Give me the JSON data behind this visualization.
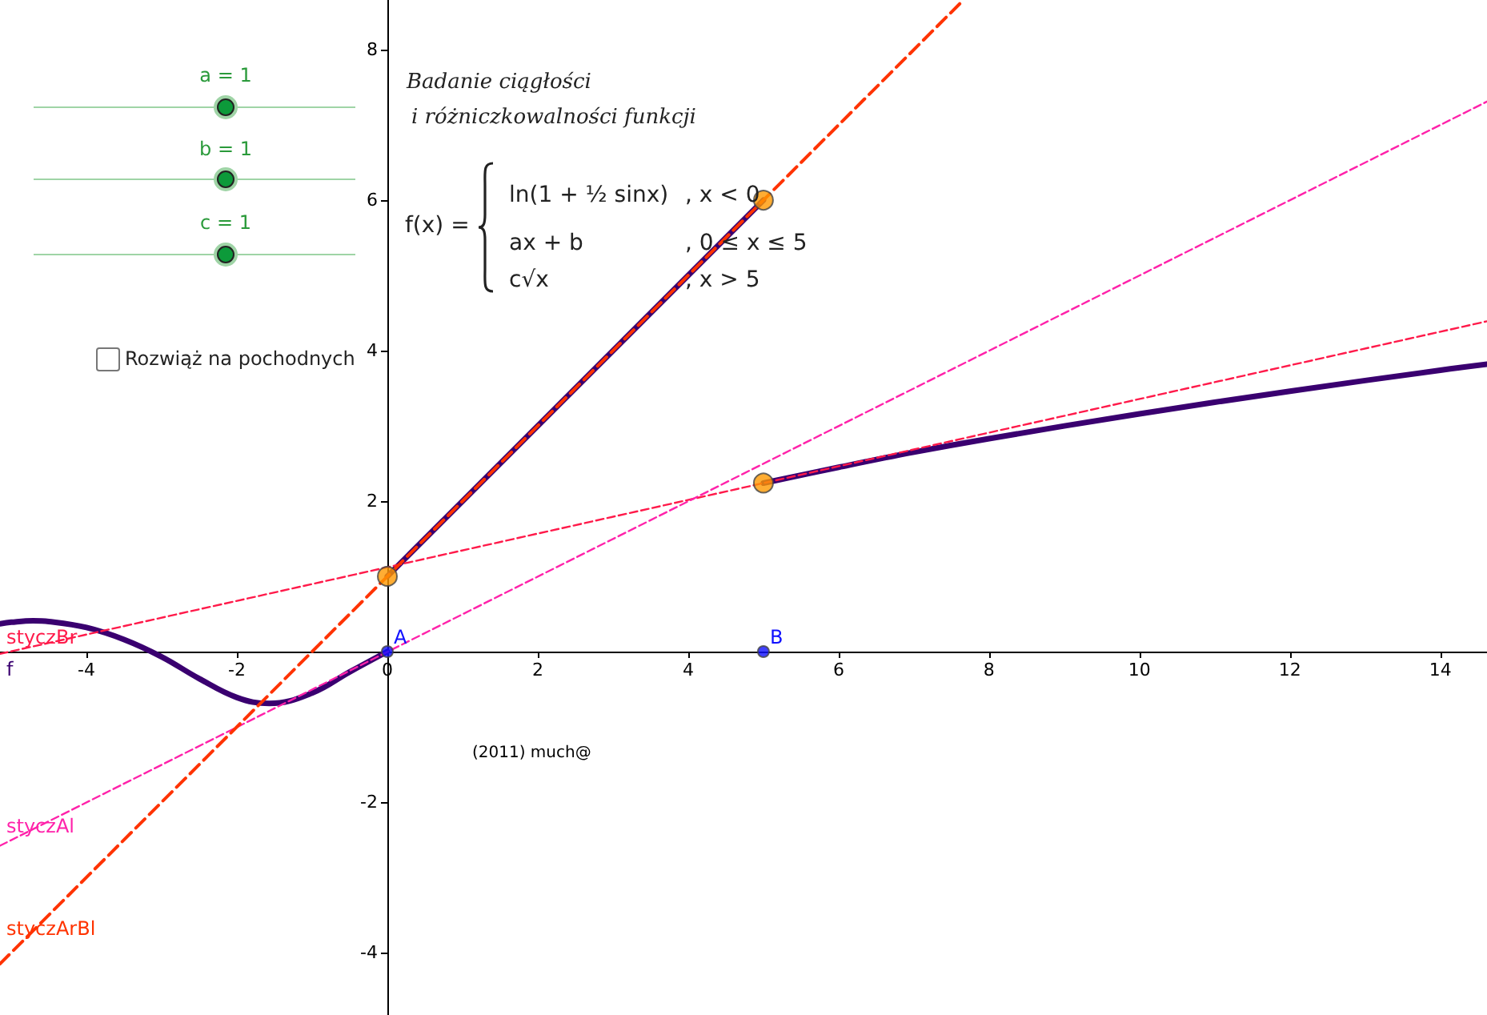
{
  "chart_data": {
    "type": "line",
    "xlim": [
      -5.15,
      14.62
    ],
    "ylim": [
      -4.83,
      8.66
    ],
    "xticks": [
      -4,
      -2,
      0,
      2,
      4,
      6,
      8,
      10,
      12,
      14
    ],
    "yticks": [
      -4,
      -2,
      2,
      4,
      6,
      8
    ],
    "marker": "none",
    "series": [
      {
        "name": "f",
        "color": "#3a0070",
        "x": [
          -5.15,
          -5,
          -4.71,
          -4.5,
          -4,
          -3.5,
          -3,
          -2.5,
          -2,
          -1.57,
          -1,
          -0.5,
          0
        ],
        "values": [
          0.37,
          0.39,
          0.41,
          0.4,
          0.32,
          0.16,
          -0.07,
          -0.36,
          -0.61,
          -0.69,
          -0.55,
          -0.27,
          0
        ]
      },
      {
        "color": "#3a0070",
        "x": [
          0,
          5
        ],
        "values": [
          1,
          6
        ]
      },
      {
        "color": "#3a0070",
        "x": [
          5,
          6,
          7,
          8,
          10,
          12,
          14,
          14.62
        ],
        "values": [
          2.24,
          2.45,
          2.65,
          2.83,
          3.16,
          3.46,
          3.74,
          3.82
        ]
      },
      {
        "name": "styczBr",
        "color": "#ff1a4a",
        "line_style": "dashed",
        "x": [
          -5.15,
          14.62
        ],
        "values": [
          -0.03,
          4.39
        ]
      },
      {
        "name": "styczAl",
        "color": "#ff22aa",
        "line_style": "dashed",
        "x": [
          -5.15,
          14.62
        ],
        "values": [
          -2.58,
          7.31
        ]
      },
      {
        "name": "styczArBl",
        "color": "#ff3300",
        "line_style": "dashed",
        "x": [
          -5.15,
          7.66
        ],
        "values": [
          -4.15,
          8.66
        ]
      },
      {
        "type": "scatter",
        "marker": "circle",
        "color": "#ff9900",
        "x": [
          0,
          5,
          5
        ],
        "values": [
          1,
          6,
          2.24
        ]
      },
      {
        "type": "scatter",
        "marker": "circle",
        "color": "#1010ff",
        "x": [
          0,
          5
        ],
        "values": [
          0,
          0
        ]
      }
    ],
    "annotations": [
      "Badanie ciągłości",
      "i różniczkowalności funkcji",
      "f(x) =",
      "ln(1 + ½ sinx)",
      ",   x < 0",
      "ax + b",
      ",   0 ≤ x ≤ 5",
      "c√x",
      ",   x > 5",
      "a = 1",
      "b = 1",
      "c = 1",
      "Rozwiąż na pochodnych",
      "(2011) much@",
      {
        "text": "A",
        "x": 0,
        "y": 0
      },
      {
        "text": "B",
        "x": 5,
        "y": 0
      }
    ]
  }
}
